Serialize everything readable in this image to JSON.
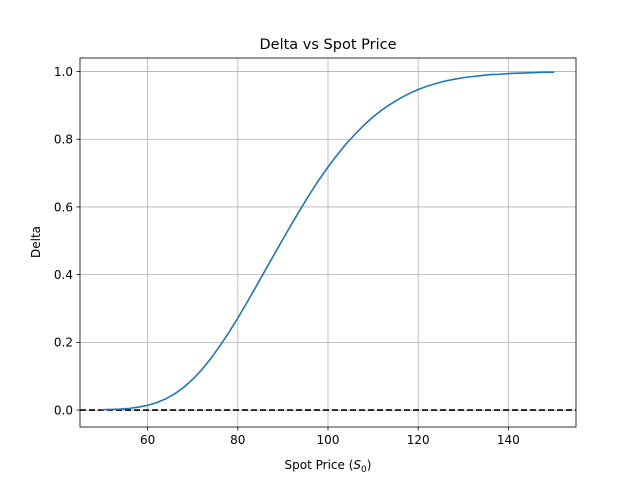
{
  "chart_data": {
    "type": "line",
    "title": "Delta vs Spot Price",
    "xlabel_main": "Spot Price (",
    "xlabel_var": "S",
    "xlabel_sub": "0",
    "xlabel_close": ")",
    "ylabel": "Delta",
    "xlim": [
      45,
      155
    ],
    "ylim": [
      -0.05,
      1.04
    ],
    "grid": true,
    "x_ticks": [
      60,
      80,
      100,
      120,
      140
    ],
    "x_tick_labels": [
      "60",
      "80",
      "100",
      "120",
      "140"
    ],
    "y_ticks": [
      0.0,
      0.2,
      0.4,
      0.6,
      0.8,
      1.0
    ],
    "y_tick_labels": [
      "0.0",
      "0.2",
      "0.4",
      "0.6",
      "0.8",
      "1.0"
    ],
    "series": [
      {
        "color": "#1f77b4",
        "style": "solid",
        "x": [
          50,
          52,
          54,
          56,
          58,
          60,
          62,
          64,
          66,
          68,
          70,
          72,
          74,
          76,
          78,
          80,
          82,
          84,
          86,
          88,
          90,
          92,
          94,
          96,
          98,
          100,
          102,
          104,
          106,
          108,
          110,
          112,
          114,
          116,
          118,
          120,
          122,
          124,
          126,
          128,
          130,
          132,
          134,
          136,
          138,
          140,
          142,
          144,
          146,
          148,
          150
        ],
        "y": [
          0.001,
          0.002,
          0.003,
          0.005,
          0.009,
          0.014,
          0.022,
          0.033,
          0.048,
          0.067,
          0.091,
          0.119,
          0.152,
          0.189,
          0.229,
          0.272,
          0.317,
          0.364,
          0.411,
          0.458,
          0.505,
          0.551,
          0.596,
          0.639,
          0.68,
          0.718,
          0.753,
          0.786,
          0.815,
          0.842,
          0.866,
          0.887,
          0.905,
          0.921,
          0.935,
          0.947,
          0.957,
          0.965,
          0.972,
          0.977,
          0.982,
          0.985,
          0.988,
          0.991,
          0.992,
          0.994,
          0.995,
          0.996,
          0.997,
          0.998,
          0.998
        ]
      }
    ],
    "hlines": [
      {
        "y": 0.0,
        "color": "#000000",
        "style": "dashed"
      }
    ]
  }
}
